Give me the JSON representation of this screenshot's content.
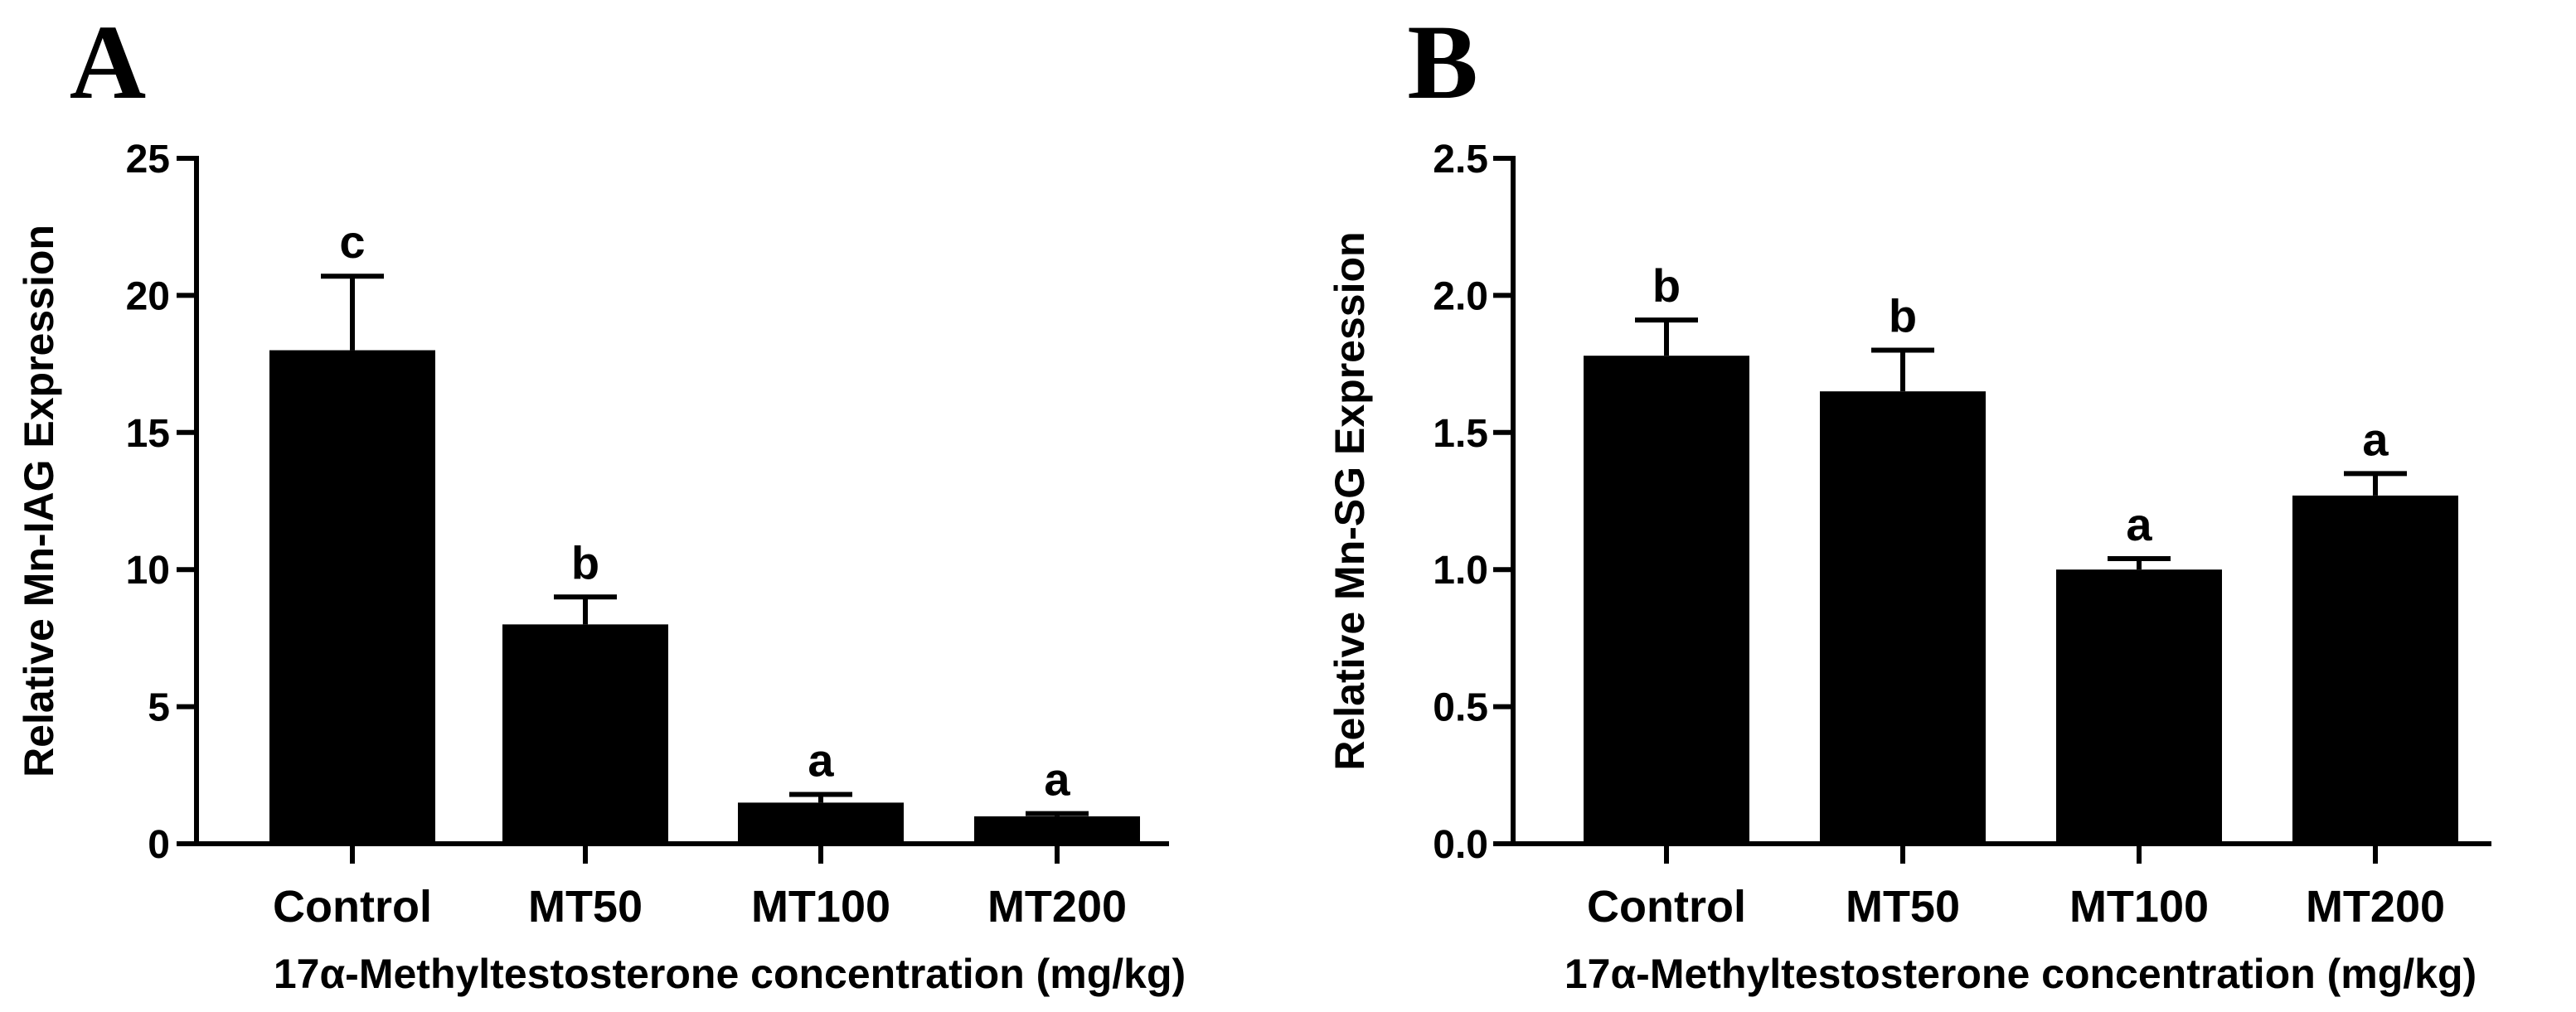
{
  "chart_data": [
    {
      "type": "bar",
      "panel": "A",
      "categories": [
        "Control",
        "MT50",
        "MT100",
        "MT200"
      ],
      "values": [
        18.0,
        8.0,
        1.5,
        1.0
      ],
      "errors": [
        2.7,
        1.0,
        0.3,
        0.1
      ],
      "significance": [
        "c",
        "b",
        "a",
        "a"
      ],
      "ylabel": "Relative Mn-IAG Expression",
      "xlabel": "17α-Methyltestosterone concentration (mg/kg)",
      "ylim": [
        0,
        25
      ],
      "yticks": [
        0,
        5,
        10,
        15,
        20,
        25
      ],
      "ytick_labels": [
        "0",
        "5",
        "10",
        "15",
        "20",
        "25"
      ],
      "bar_color": "#000000"
    },
    {
      "type": "bar",
      "panel": "B",
      "categories": [
        "Control",
        "MT50",
        "MT100",
        "MT200"
      ],
      "values": [
        1.78,
        1.65,
        1.0,
        1.27
      ],
      "errors": [
        0.13,
        0.15,
        0.04,
        0.08
      ],
      "significance": [
        "b",
        "b",
        "a",
        "a"
      ],
      "ylabel": "Relative Mn-SG Expression",
      "xlabel": "17α-Methyltestosterone concentration (mg/kg)",
      "ylim": [
        0,
        2.5
      ],
      "yticks": [
        0,
        0.5,
        1.0,
        1.5,
        2.0,
        2.5
      ],
      "ytick_labels": [
        "0.0",
        "0.5",
        "1.0",
        "1.5",
        "2.0",
        "2.5"
      ],
      "bar_color": "#000000"
    }
  ]
}
